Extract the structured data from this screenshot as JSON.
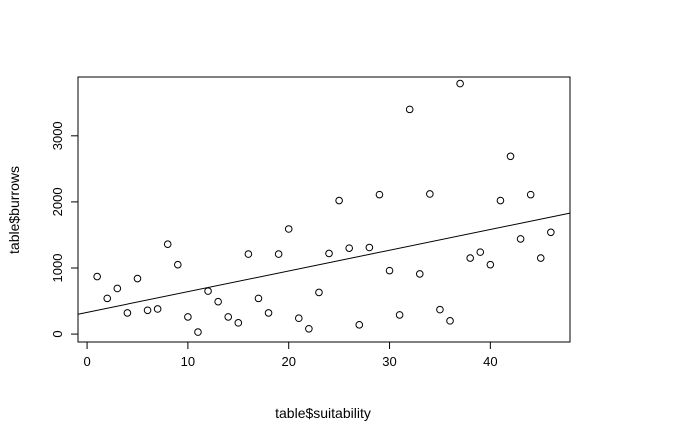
{
  "chart_data": {
    "type": "scatter",
    "title": "",
    "xlabel": "table$suitability",
    "ylabel": "table$burrows",
    "xlim": [
      -0.9,
      47.9
    ],
    "ylim": [
      -120,
      3890
    ],
    "x_ticks": [
      0,
      10,
      20,
      30,
      40
    ],
    "x_tick_labels": [
      "0",
      "10",
      "20",
      "30",
      "40"
    ],
    "y_ticks": [
      0,
      1000,
      2000,
      3000
    ],
    "y_tick_labels": [
      "0",
      "1000",
      "2000",
      "3000"
    ],
    "grid": false,
    "legend": "none",
    "marker": "open-circle",
    "points": [
      {
        "x": 1,
        "y": 870
      },
      {
        "x": 2,
        "y": 540
      },
      {
        "x": 3,
        "y": 690
      },
      {
        "x": 4,
        "y": 320
      },
      {
        "x": 5,
        "y": 840
      },
      {
        "x": 6,
        "y": 360
      },
      {
        "x": 7,
        "y": 380
      },
      {
        "x": 8,
        "y": 1360
      },
      {
        "x": 9,
        "y": 1050
      },
      {
        "x": 10,
        "y": 260
      },
      {
        "x": 11,
        "y": 30
      },
      {
        "x": 12,
        "y": 650
      },
      {
        "x": 13,
        "y": 490
      },
      {
        "x": 14,
        "y": 260
      },
      {
        "x": 15,
        "y": 170
      },
      {
        "x": 16,
        "y": 1210
      },
      {
        "x": 17,
        "y": 540
      },
      {
        "x": 18,
        "y": 320
      },
      {
        "x": 19,
        "y": 1210
      },
      {
        "x": 20,
        "y": 1590
      },
      {
        "x": 21,
        "y": 240
      },
      {
        "x": 22,
        "y": 80
      },
      {
        "x": 23,
        "y": 630
      },
      {
        "x": 24,
        "y": 1220
      },
      {
        "x": 25,
        "y": 2020
      },
      {
        "x": 26,
        "y": 1300
      },
      {
        "x": 27,
        "y": 140
      },
      {
        "x": 28,
        "y": 1310
      },
      {
        "x": 29,
        "y": 2110
      },
      {
        "x": 30,
        "y": 960
      },
      {
        "x": 31,
        "y": 290
      },
      {
        "x": 32,
        "y": 3400
      },
      {
        "x": 33,
        "y": 910
      },
      {
        "x": 34,
        "y": 2120
      },
      {
        "x": 35,
        "y": 370
      },
      {
        "x": 36,
        "y": 200
      },
      {
        "x": 37,
        "y": 3790
      },
      {
        "x": 38,
        "y": 1150
      },
      {
        "x": 39,
        "y": 1240
      },
      {
        "x": 40,
        "y": 1050
      },
      {
        "x": 41,
        "y": 2020
      },
      {
        "x": 42,
        "y": 2690
      },
      {
        "x": 43,
        "y": 1440
      },
      {
        "x": 44,
        "y": 2110
      },
      {
        "x": 45,
        "y": 1150
      },
      {
        "x": 46,
        "y": 1540
      }
    ],
    "trend_line": {
      "x1": -0.9,
      "y1": 300,
      "x2": 47.9,
      "y2": 1830
    }
  },
  "colors": {
    "background": "#ffffff",
    "foreground": "#000000"
  }
}
